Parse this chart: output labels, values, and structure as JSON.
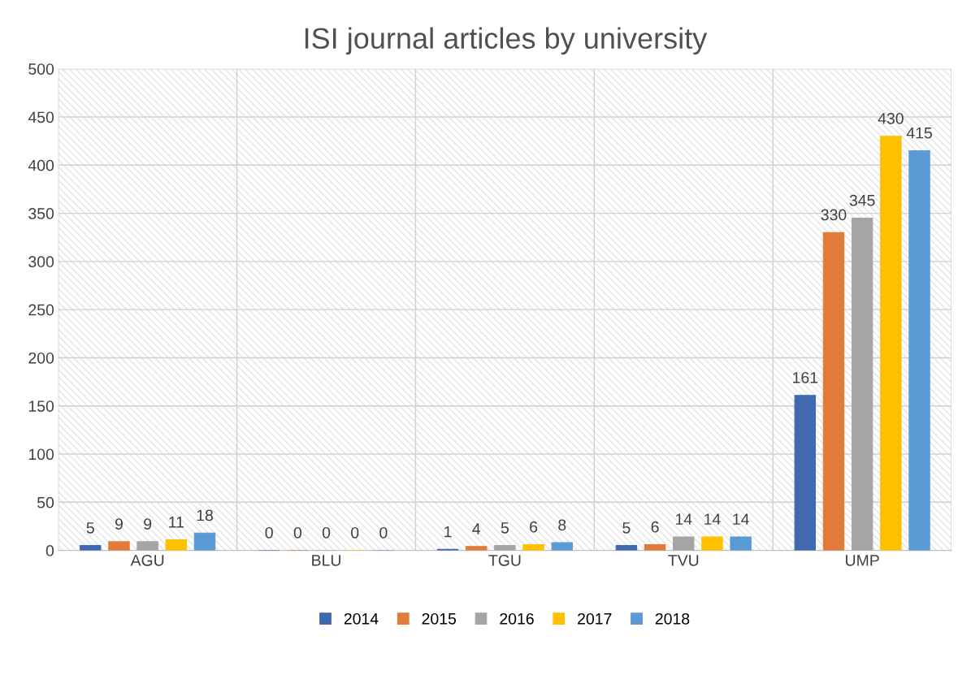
{
  "chart_data": {
    "type": "bar",
    "title": "ISI journal articles by university",
    "categories": [
      "AGU",
      "BLU",
      "TGU",
      "TVU",
      "UMP"
    ],
    "series": [
      {
        "name": "2014",
        "color": "#4169b0",
        "values": [
          5,
          0,
          1,
          5,
          161
        ]
      },
      {
        "name": "2015",
        "color": "#e07b39",
        "values": [
          9,
          0,
          4,
          6,
          330
        ]
      },
      {
        "name": "2016",
        "color": "#a5a5a5",
        "values": [
          9,
          0,
          5,
          14,
          345
        ]
      },
      {
        "name": "2017",
        "color": "#ffc000",
        "values": [
          11,
          0,
          6,
          14,
          430
        ]
      },
      {
        "name": "2018",
        "color": "#5b9bd5",
        "values": [
          18,
          0,
          8,
          14,
          415
        ]
      }
    ],
    "ylim": [
      0,
      500
    ],
    "yticks": [
      0,
      50,
      100,
      150,
      200,
      250,
      300,
      350,
      400,
      450,
      500
    ],
    "grid": true,
    "legend": "bottom",
    "data_labels": true
  }
}
